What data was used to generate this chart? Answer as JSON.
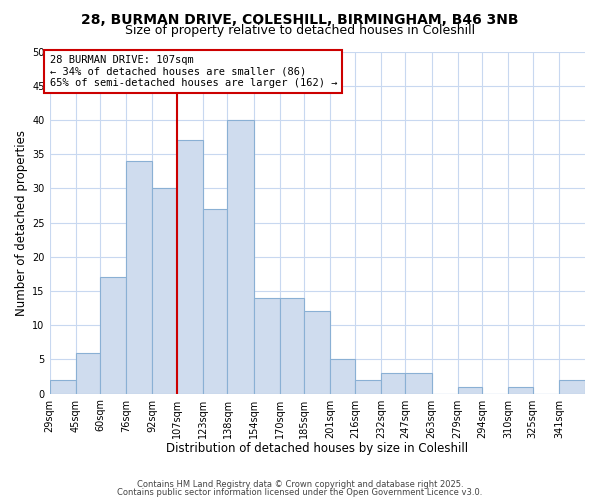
{
  "title_line1": "28, BURMAN DRIVE, COLESHILL, BIRMINGHAM, B46 3NB",
  "title_line2": "Size of property relative to detached houses in Coleshill",
  "xlabel": "Distribution of detached houses by size in Coleshill",
  "ylabel": "Number of detached properties",
  "bin_edges": [
    29,
    45,
    60,
    76,
    92,
    107,
    123,
    138,
    154,
    170,
    185,
    201,
    216,
    232,
    247,
    263,
    279,
    294,
    310,
    325,
    341,
    357
  ],
  "counts": [
    2,
    6,
    17,
    34,
    30,
    37,
    27,
    40,
    14,
    14,
    12,
    5,
    2,
    3,
    3,
    0,
    1,
    0,
    1,
    0,
    2
  ],
  "bar_color": "#cfdcee",
  "bar_edge_color": "#8ab0d4",
  "vline_x": 107,
  "vline_color": "#cc0000",
  "ylim": [
    0,
    50
  ],
  "yticks": [
    0,
    5,
    10,
    15,
    20,
    25,
    30,
    35,
    40,
    45,
    50
  ],
  "xtick_labels": [
    "29sqm",
    "45sqm",
    "60sqm",
    "76sqm",
    "92sqm",
    "107sqm",
    "123sqm",
    "138sqm",
    "154sqm",
    "170sqm",
    "185sqm",
    "201sqm",
    "216sqm",
    "232sqm",
    "247sqm",
    "263sqm",
    "279sqm",
    "294sqm",
    "310sqm",
    "325sqm",
    "341sqm"
  ],
  "annotation_text": "28 BURMAN DRIVE: 107sqm\n← 34% of detached houses are smaller (86)\n65% of semi-detached houses are larger (162) →",
  "annotation_box_color": "#ffffff",
  "annotation_box_edge": "#cc0000",
  "footnote1": "Contains HM Land Registry data © Crown copyright and database right 2025.",
  "footnote2": "Contains public sector information licensed under the Open Government Licence v3.0.",
  "bg_color": "#ffffff",
  "grid_color": "#c8d8f0",
  "title_fontsize": 10,
  "subtitle_fontsize": 9,
  "tick_label_fontsize": 7,
  "axis_label_fontsize": 8.5,
  "annot_fontsize": 7.5
}
